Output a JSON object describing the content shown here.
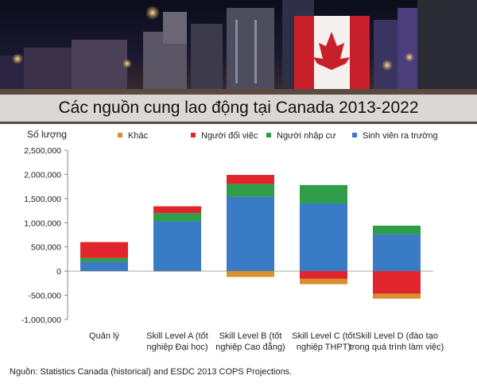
{
  "banner": {
    "title": "Các nguồn cung lao động tại Canada 2013-2022"
  },
  "footer": {
    "source_label": "Nguồn:",
    "source_text": "Statistics Canada (historical) and ESDC 2013 COPS Projections."
  },
  "colors": {
    "khac": "#d98f2b",
    "nguoi_doi_viec": "#e0262c",
    "nguoi_nhap_cu": "#2e9c48",
    "sinh_vien": "#3a7bc6"
  },
  "chart_data": {
    "type": "bar",
    "stacked": true,
    "ylabel": "Số lượng",
    "xlabel": "",
    "ylim": [
      -1000000,
      2500000
    ],
    "yticks": [
      2500000,
      2000000,
      1500000,
      1000000,
      500000,
      0,
      -500000,
      -1000000
    ],
    "ytick_labels": [
      "2,500,000",
      "2,000,000",
      "1,500,000",
      "1,000,000",
      "500,000",
      "0",
      "-500,000",
      "-1,000,000"
    ],
    "grid": false,
    "legend_position": "top",
    "categories": [
      [
        "Quản lý"
      ],
      [
        "Skill Level A (tốt",
        "nghiệp Đại học)"
      ],
      [
        "Skill Level B (tốt",
        "nghiệp Cao đẳng)"
      ],
      [
        "Skill Level C (tốt",
        "nghiệp THPT)"
      ],
      [
        "Skill Level D (đào tạo",
        "trong quá trình làm việc)"
      ]
    ],
    "series": [
      {
        "name": "Sinh viên ra trường",
        "color": "#3a7bc6",
        "values": [
          190000,
          1030000,
          1540000,
          1400000,
          760000
        ]
      },
      {
        "name": "Người nhập cư",
        "color": "#2e9c48",
        "values": [
          80000,
          170000,
          260000,
          380000,
          180000
        ]
      },
      {
        "name": "Người đổi việc",
        "color": "#e0262c",
        "values": [
          330000,
          140000,
          190000,
          -160000,
          -470000
        ]
      },
      {
        "name": "Khác",
        "color": "#d98f2b",
        "values": [
          -5000,
          -10000,
          -120000,
          -110000,
          -100000
        ]
      }
    ],
    "legend_order": [
      "Khác",
      "Người đổi việc",
      "Người nhập cư",
      "Sinh viên ra trường"
    ]
  }
}
